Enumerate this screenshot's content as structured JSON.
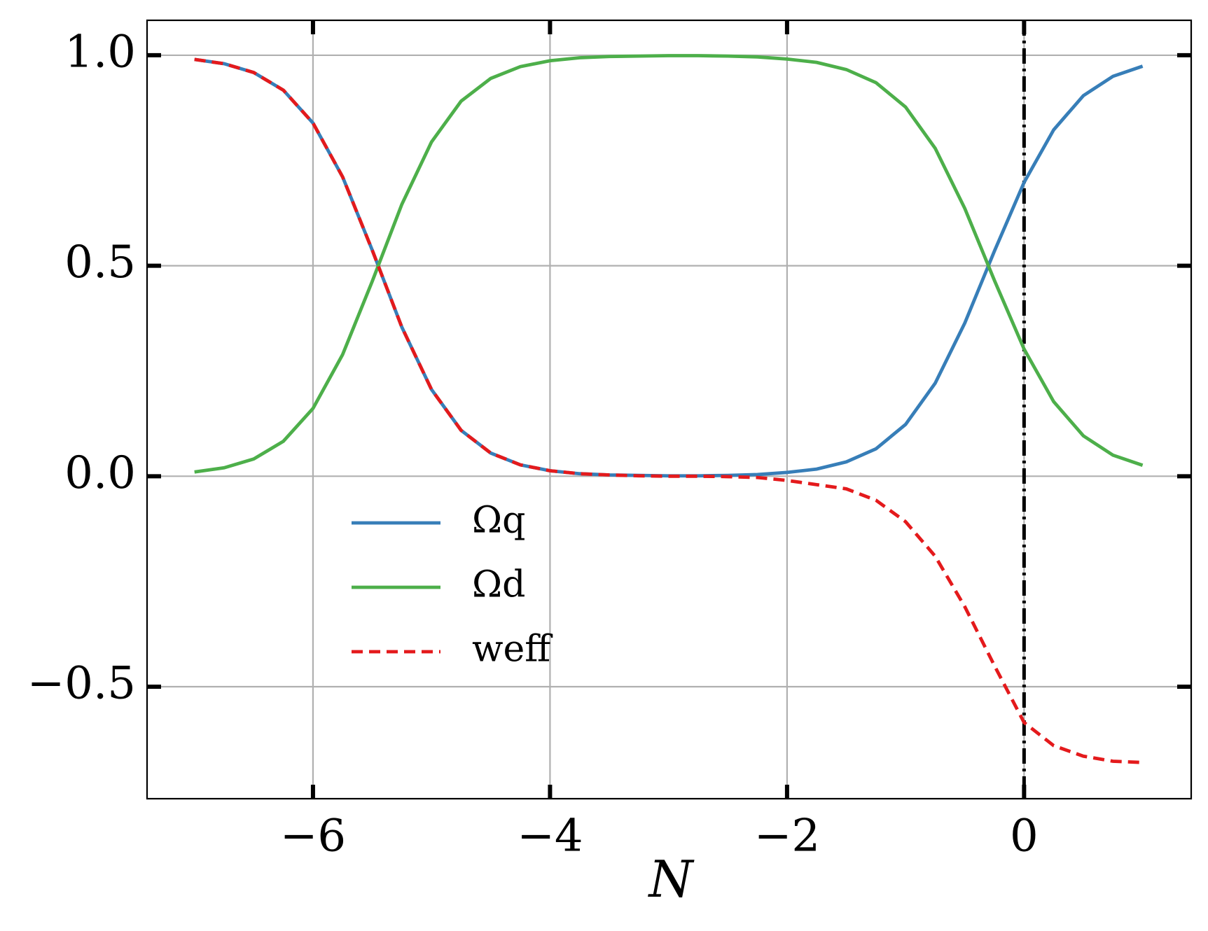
{
  "chart_data": {
    "type": "line",
    "x": [
      -7,
      -6.75,
      -6.5,
      -6.25,
      -6,
      -5.75,
      -5.5,
      -5.25,
      -5,
      -4.75,
      -4.5,
      -4.25,
      -4,
      -3.75,
      -3.5,
      -3.25,
      -3,
      -2.75,
      -2.5,
      -2.25,
      -2,
      -1.75,
      -1.5,
      -1.25,
      -1,
      -0.75,
      -0.5,
      -0.25,
      0,
      0.25,
      0.5,
      0.75,
      1
    ],
    "series": [
      {
        "name": "Ωq",
        "color": "#377eb8",
        "style": "solid",
        "values": [
          0.99,
          0.98,
          0.959,
          0.917,
          0.839,
          0.711,
          0.537,
          0.354,
          0.206,
          0.109,
          0.055,
          0.027,
          0.013,
          0.006,
          0.003,
          0.002,
          0.001,
          0.001,
          0.002,
          0.004,
          0.009,
          0.017,
          0.034,
          0.065,
          0.123,
          0.221,
          0.364,
          0.535,
          0.698,
          0.823,
          0.904,
          0.95,
          0.974
        ]
      },
      {
        "name": "Ωd",
        "color": "#4daf4a",
        "style": "solid",
        "values": [
          0.01,
          0.02,
          0.041,
          0.083,
          0.161,
          0.289,
          0.463,
          0.646,
          0.794,
          0.891,
          0.945,
          0.973,
          0.987,
          0.994,
          0.997,
          0.998,
          0.999,
          0.999,
          0.998,
          0.996,
          0.991,
          0.983,
          0.966,
          0.935,
          0.877,
          0.779,
          0.636,
          0.465,
          0.302,
          0.177,
          0.096,
          0.05,
          0.026
        ]
      },
      {
        "name": "weff",
        "color": "#e41a1c",
        "style": "dashed",
        "values": [
          0.99,
          0.98,
          0.959,
          0.917,
          0.839,
          0.711,
          0.537,
          0.354,
          0.206,
          0.109,
          0.055,
          0.027,
          0.013,
          0.006,
          0.003,
          0.001,
          0.0,
          0.0,
          -0.001,
          -0.003,
          -0.01,
          -0.02,
          -0.03,
          -0.057,
          -0.108,
          -0.19,
          -0.31,
          -0.45,
          -0.585,
          -0.64,
          -0.665,
          -0.677,
          -0.68
        ]
      }
    ],
    "xlabel": "N",
    "xlim": [
      -7.4,
      1.41
    ],
    "ylim": [
      -0.766,
      1.083
    ],
    "xticks": [
      {
        "value": -6,
        "label": "−6"
      },
      {
        "value": -4,
        "label": "−4"
      },
      {
        "value": -2,
        "label": "−2"
      },
      0
    ],
    "yticks": [
      {
        "value": -0.5,
        "label": "−0.5"
      },
      {
        "value": 0,
        "label": "0.0"
      },
      {
        "value": 0.5,
        "label": "0.5"
      },
      {
        "value": 1,
        "label": "1.0"
      }
    ],
    "vline": 0,
    "grid": true,
    "legend": "lower left"
  }
}
